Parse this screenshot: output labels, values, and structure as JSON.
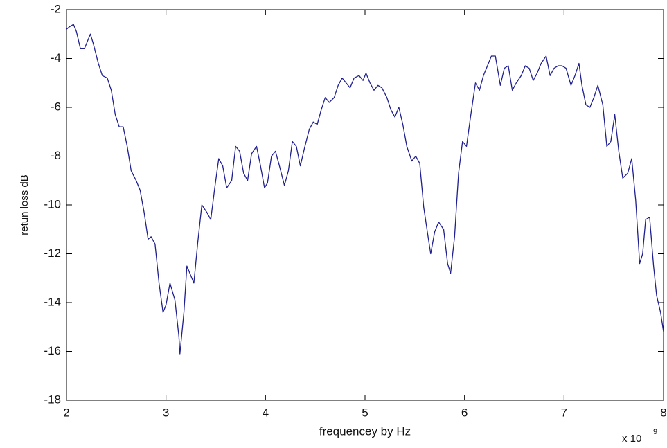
{
  "chart_data": {
    "type": "line",
    "xlabel": "frequencey by Hz",
    "ylabel": "retun loss dB",
    "x_multiplier": "x 10",
    "x_multiplier_exponent": "9",
    "color": "#1f1f8f",
    "xlim": [
      2,
      8
    ],
    "xticks": [
      2,
      3,
      4,
      5,
      6,
      7,
      8
    ],
    "ylim": [
      -18,
      -2
    ],
    "yticks": [
      -18,
      -16,
      -14,
      -12,
      -10,
      -8,
      -6,
      -4,
      -2
    ],
    "grid": false,
    "x": [
      2.0,
      2.03,
      2.07,
      2.1,
      2.14,
      2.18,
      2.24,
      2.27,
      2.32,
      2.36,
      2.41,
      2.45,
      2.49,
      2.53,
      2.57,
      2.61,
      2.65,
      2.7,
      2.74,
      2.78,
      2.82,
      2.85,
      2.89,
      2.93,
      2.97,
      3.0,
      3.04,
      3.09,
      3.13,
      3.14,
      3.18,
      3.21,
      3.24,
      3.28,
      3.32,
      3.36,
      3.41,
      3.45,
      3.49,
      3.53,
      3.57,
      3.61,
      3.66,
      3.7,
      3.74,
      3.78,
      3.82,
      3.86,
      3.91,
      3.95,
      3.99,
      4.02,
      4.06,
      4.1,
      4.14,
      4.19,
      4.23,
      4.27,
      4.31,
      4.35,
      4.39,
      4.44,
      4.48,
      4.52,
      4.56,
      4.6,
      4.64,
      4.69,
      4.73,
      4.77,
      4.81,
      4.85,
      4.89,
      4.94,
      4.98,
      5.01,
      5.05,
      5.09,
      5.13,
      5.17,
      5.22,
      5.26,
      5.3,
      5.34,
      5.38,
      5.42,
      5.47,
      5.51,
      5.55,
      5.59,
      5.63,
      5.66,
      5.7,
      5.74,
      5.79,
      5.83,
      5.86,
      5.9,
      5.94,
      5.98,
      6.02,
      6.06,
      6.11,
      6.15,
      6.19,
      6.23,
      6.27,
      6.31,
      6.36,
      6.4,
      6.44,
      6.48,
      6.52,
      6.57,
      6.61,
      6.65,
      6.69,
      6.73,
      6.77,
      6.82,
      6.86,
      6.9,
      6.94,
      6.98,
      7.02,
      7.07,
      7.11,
      7.15,
      7.18,
      7.22,
      7.26,
      7.3,
      7.34,
      7.39,
      7.43,
      7.47,
      7.51,
      7.55,
      7.59,
      7.64,
      7.68,
      7.72,
      7.76,
      7.79,
      7.82,
      7.86,
      7.9,
      7.93,
      7.97,
      8.0
    ],
    "values": [
      -2.8,
      -2.7,
      -2.6,
      -2.9,
      -3.6,
      -3.6,
      -3.0,
      -3.4,
      -4.2,
      -4.7,
      -4.8,
      -5.3,
      -6.3,
      -6.8,
      -6.8,
      -7.6,
      -8.6,
      -9.0,
      -9.4,
      -10.3,
      -11.4,
      -11.3,
      -11.6,
      -13.2,
      -14.4,
      -14.1,
      -13.2,
      -13.9,
      -15.4,
      -16.1,
      -14.4,
      -12.5,
      -12.8,
      -13.2,
      -11.5,
      -10.0,
      -10.3,
      -10.6,
      -9.3,
      -8.1,
      -8.4,
      -9.3,
      -9.0,
      -7.6,
      -7.8,
      -8.7,
      -9.0,
      -7.9,
      -7.6,
      -8.4,
      -9.3,
      -9.1,
      -8.0,
      -7.8,
      -8.4,
      -9.2,
      -8.6,
      -7.4,
      -7.6,
      -8.4,
      -7.7,
      -6.9,
      -6.6,
      -6.7,
      -6.1,
      -5.6,
      -5.8,
      -5.6,
      -5.1,
      -4.8,
      -5.0,
      -5.2,
      -4.8,
      -4.7,
      -4.9,
      -4.6,
      -5.0,
      -5.3,
      -5.1,
      -5.2,
      -5.6,
      -6.1,
      -6.4,
      -6.0,
      -6.7,
      -7.6,
      -8.2,
      -8.0,
      -8.3,
      -10.1,
      -11.2,
      -12.0,
      -11.1,
      -10.7,
      -11.0,
      -12.4,
      -12.8,
      -11.3,
      -8.7,
      -7.4,
      -7.6,
      -6.4,
      -5.0,
      -5.3,
      -4.7,
      -4.3,
      -3.9,
      -3.9,
      -5.1,
      -4.4,
      -4.3,
      -5.3,
      -5.0,
      -4.7,
      -4.3,
      -4.4,
      -4.9,
      -4.6,
      -4.2,
      -3.9,
      -4.7,
      -4.4,
      -4.3,
      -4.3,
      -4.4,
      -5.1,
      -4.7,
      -4.2,
      -5.1,
      -5.9,
      -6.0,
      -5.6,
      -5.1,
      -5.9,
      -7.6,
      -7.4,
      -6.3,
      -7.8,
      -8.9,
      -8.7,
      -8.1,
      -9.8,
      -12.4,
      -12.0,
      -10.6,
      -10.5,
      -12.5,
      -13.7,
      -14.4,
      -15.2
    ]
  }
}
